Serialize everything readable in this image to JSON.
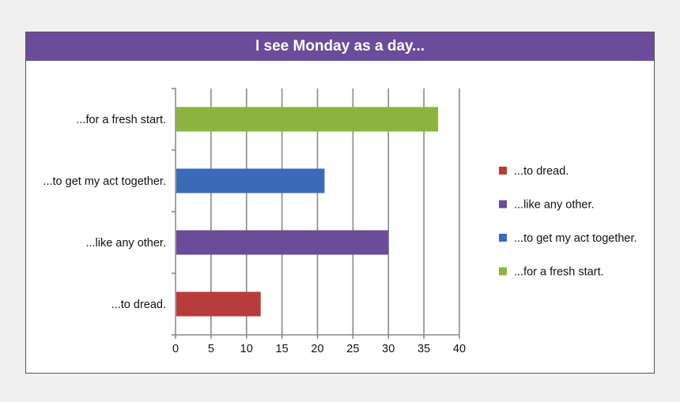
{
  "chart_data": {
    "type": "bar",
    "orientation": "horizontal",
    "title": "I see Monday as a day...",
    "xlabel": "",
    "ylabel": "",
    "categories": [
      "...to dread.",
      "...like any other.",
      "...to get my act together.",
      "...for a fresh start."
    ],
    "values": [
      12,
      30,
      21,
      37
    ],
    "colors": [
      "#b83c3c",
      "#6b4c9a",
      "#3b6bb8",
      "#8ab33f"
    ],
    "xlim": [
      0,
      40
    ],
    "xticks": [
      0,
      5,
      10,
      15,
      20,
      25,
      30,
      35,
      40
    ],
    "grid": true,
    "legend": {
      "position": "right",
      "entries": [
        "...to dread.",
        "...like any other.",
        "...to get my act together.",
        "...for a fresh start."
      ]
    },
    "title_bar_color": "#6b4c9a"
  }
}
